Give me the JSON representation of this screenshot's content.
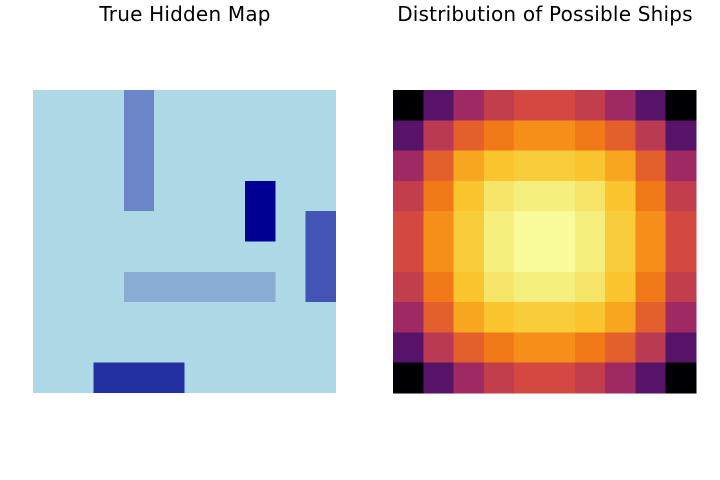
{
  "chart_data": [
    {
      "type": "heatmap",
      "title": "True Hidden Map",
      "grid_size": [
        10,
        10
      ],
      "background_color": "#add8e6",
      "ships": [
        {
          "label": "ship-1",
          "row": 0,
          "col": 3,
          "length": 4,
          "orientation": "vertical",
          "color": "#6b85c6"
        },
        {
          "label": "ship-2",
          "row": 3,
          "col": 7,
          "length": 2,
          "orientation": "vertical",
          "color": "#000092"
        },
        {
          "label": "ship-3",
          "row": 4,
          "col": 9,
          "length": 3,
          "orientation": "vertical",
          "color": "#4355b5"
        },
        {
          "label": "ship-4",
          "row": 6,
          "col": 3,
          "length": 5,
          "orientation": "horizontal",
          "color": "#89abd4"
        },
        {
          "label": "ship-5",
          "row": 9,
          "col": 2,
          "length": 3,
          "orientation": "horizontal",
          "color": "#2230a1"
        }
      ],
      "axes_visible": false
    },
    {
      "type": "heatmap",
      "title": "Distribution of Possible Ships",
      "colormap": "inferno",
      "axes_visible": false,
      "values": [
        [
          0.0,
          0.22,
          0.38,
          0.46,
          0.5,
          0.5,
          0.46,
          0.38,
          0.22,
          0.0
        ],
        [
          0.22,
          0.44,
          0.56,
          0.62,
          0.66,
          0.66,
          0.62,
          0.56,
          0.44,
          0.22
        ],
        [
          0.38,
          0.56,
          0.7,
          0.76,
          0.78,
          0.78,
          0.76,
          0.7,
          0.56,
          0.38
        ],
        [
          0.46,
          0.62,
          0.76,
          0.85,
          0.88,
          0.88,
          0.85,
          0.76,
          0.62,
          0.46
        ],
        [
          0.5,
          0.66,
          0.78,
          0.88,
          0.97,
          0.97,
          0.88,
          0.78,
          0.66,
          0.5
        ],
        [
          0.5,
          0.66,
          0.78,
          0.88,
          0.97,
          0.97,
          0.88,
          0.78,
          0.66,
          0.5
        ],
        [
          0.46,
          0.62,
          0.76,
          0.85,
          0.88,
          0.88,
          0.85,
          0.76,
          0.62,
          0.46
        ],
        [
          0.38,
          0.56,
          0.7,
          0.76,
          0.78,
          0.78,
          0.76,
          0.7,
          0.56,
          0.38
        ],
        [
          0.22,
          0.44,
          0.56,
          0.62,
          0.66,
          0.66,
          0.62,
          0.56,
          0.44,
          0.22
        ],
        [
          0.0,
          0.22,
          0.38,
          0.46,
          0.5,
          0.5,
          0.46,
          0.38,
          0.22,
          0.0
        ]
      ]
    }
  ]
}
